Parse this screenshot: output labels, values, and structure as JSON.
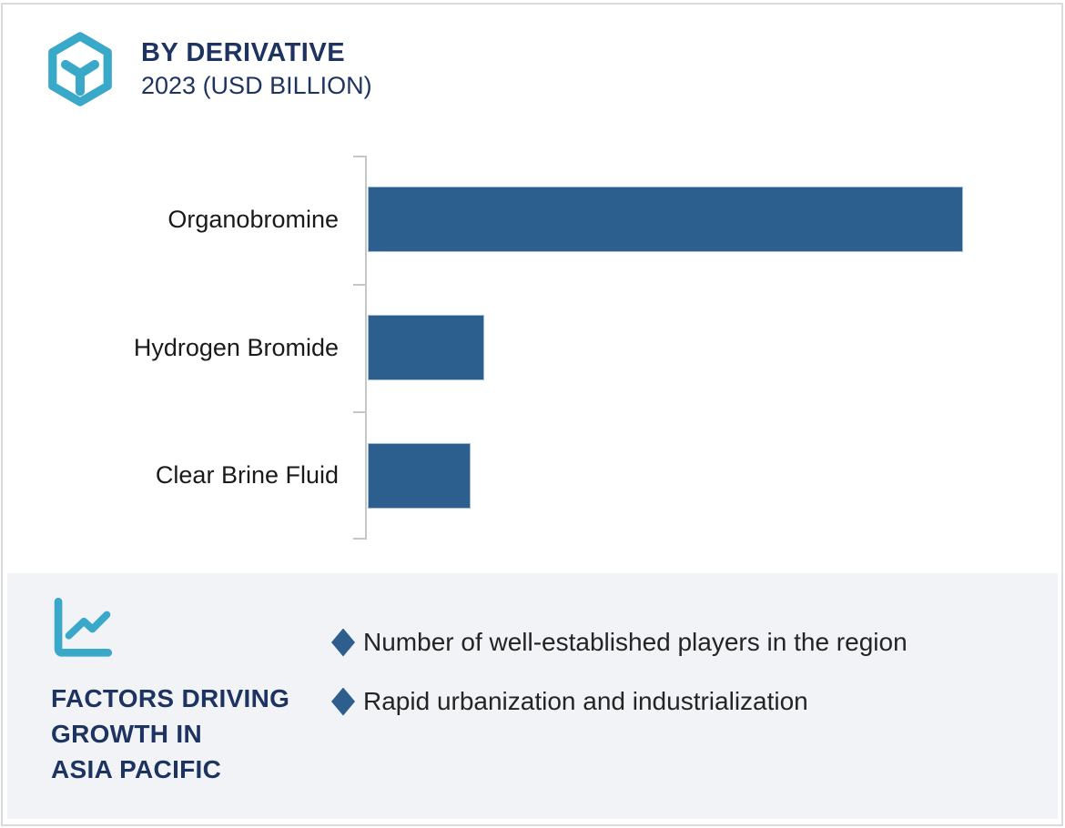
{
  "header": {
    "logo_icon": "hexagon-cube-icon",
    "title": "BY DERIVATIVE",
    "subtitle": "2023 (USD BILLION)"
  },
  "chart_data": {
    "type": "bar",
    "orientation": "horizontal",
    "title": "BY DERIVATIVE",
    "subtitle": "2023 (USD BILLION)",
    "categories": [
      "Organobromine",
      "Hydrogen Bromide",
      "Clear Brine Fluid"
    ],
    "values": [
      100,
      19.6,
      17.3
    ],
    "units": "relative bar length, % of largest bar (value axis unlabeled; header states USD Billion)",
    "xlabel": "",
    "ylabel": "",
    "grid": false,
    "legend": false,
    "value_labels_shown": false
  },
  "factors": {
    "icon": "line-chart-icon",
    "heading_lines": [
      "FACTORS DRIVING",
      "GROWTH IN",
      "ASIA PACIFIC"
    ],
    "heading_text": "FACTORS DRIVING GROWTH IN ASIA PACIFIC",
    "bullet_icon": "diamond-bullet",
    "bullets": [
      "Number of well-established players in the region",
      "Rapid urbanization and industrialization"
    ]
  },
  "colors": {
    "accent_teal": "#3aa9c9",
    "navy_text": "#1d3461",
    "bar_blue": "#2d5f8e",
    "diamond_blue": "#2d5e8e",
    "panel_bg": "#f2f3f7",
    "axis_gray": "#c5c6c8",
    "label_black": "#1a1a1a",
    "card_border": "#d9dade"
  }
}
